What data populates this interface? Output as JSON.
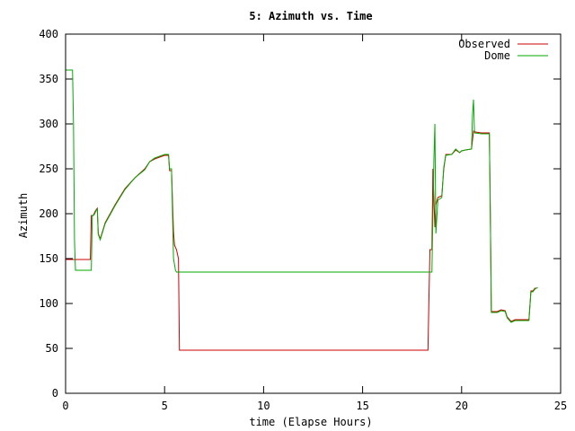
{
  "chart_data": {
    "type": "line",
    "title": "5: Azimuth vs. Time",
    "xlabel": "time (Elapse Hours)",
    "ylabel": "Azimuth",
    "xlim": [
      0,
      25
    ],
    "ylim": [
      0,
      400
    ],
    "x_ticks": [
      0,
      5,
      10,
      15,
      20,
      25
    ],
    "y_ticks": [
      0,
      50,
      100,
      150,
      200,
      250,
      300,
      350,
      400
    ],
    "grid": false,
    "legend_position": "top-right",
    "series": [
      {
        "name": "Observed",
        "color": "#cc0000",
        "points": [
          [
            0,
            150
          ],
          [
            0.05,
            149
          ],
          [
            0.45,
            149
          ],
          [
            1.25,
            149
          ],
          [
            1.3,
            198
          ],
          [
            1.4,
            198
          ],
          [
            1.5,
            203
          ],
          [
            1.6,
            206
          ],
          [
            1.65,
            178
          ],
          [
            1.75,
            172
          ],
          [
            2.0,
            190
          ],
          [
            2.5,
            210
          ],
          [
            3.0,
            228
          ],
          [
            3.5,
            240
          ],
          [
            4.0,
            250
          ],
          [
            4.25,
            258
          ],
          [
            4.5,
            261
          ],
          [
            5.0,
            265
          ],
          [
            5.2,
            265
          ],
          [
            5.25,
            248
          ],
          [
            5.35,
            248
          ],
          [
            5.45,
            180
          ],
          [
            5.5,
            165
          ],
          [
            5.6,
            160
          ],
          [
            5.7,
            150
          ],
          [
            5.75,
            48
          ],
          [
            18.3,
            48
          ],
          [
            18.35,
            105
          ],
          [
            18.4,
            160
          ],
          [
            18.5,
            160
          ],
          [
            18.55,
            250
          ],
          [
            18.6,
            218
          ],
          [
            18.65,
            185
          ],
          [
            18.7,
            210
          ],
          [
            18.8,
            218
          ],
          [
            19.0,
            220
          ],
          [
            19.1,
            250
          ],
          [
            19.2,
            266
          ],
          [
            19.5,
            266
          ],
          [
            19.7,
            271
          ],
          [
            19.9,
            268
          ],
          [
            20.0,
            270
          ],
          [
            20.2,
            271
          ],
          [
            20.5,
            272
          ],
          [
            20.6,
            292
          ],
          [
            20.7,
            291
          ],
          [
            21.0,
            290
          ],
          [
            21.3,
            290
          ],
          [
            21.4,
            290
          ],
          [
            21.45,
            200
          ],
          [
            21.5,
            91
          ],
          [
            21.8,
            91
          ],
          [
            22.0,
            93
          ],
          [
            22.2,
            92
          ],
          [
            22.3,
            85
          ],
          [
            22.5,
            80
          ],
          [
            22.7,
            82
          ],
          [
            23.0,
            82
          ],
          [
            23.4,
            82
          ],
          [
            23.5,
            114
          ],
          [
            23.6,
            114
          ],
          [
            23.7,
            117
          ],
          [
            23.8,
            117
          ]
        ]
      },
      {
        "name": "Dome",
        "color": "#00aa00",
        "points": [
          [
            0,
            360
          ],
          [
            0.35,
            360
          ],
          [
            0.4,
            300
          ],
          [
            0.45,
            170
          ],
          [
            0.5,
            137
          ],
          [
            1.3,
            137
          ],
          [
            1.35,
            198
          ],
          [
            1.45,
            199
          ],
          [
            1.55,
            204
          ],
          [
            1.6,
            205
          ],
          [
            1.65,
            177
          ],
          [
            1.75,
            171
          ],
          [
            2.0,
            189
          ],
          [
            2.5,
            209
          ],
          [
            3.0,
            227
          ],
          [
            3.5,
            240
          ],
          [
            4.0,
            249
          ],
          [
            4.25,
            258
          ],
          [
            4.5,
            262
          ],
          [
            5.0,
            266
          ],
          [
            5.2,
            266
          ],
          [
            5.25,
            250
          ],
          [
            5.35,
            250
          ],
          [
            5.45,
            150
          ],
          [
            5.55,
            137
          ],
          [
            5.6,
            135
          ],
          [
            18.5,
            135
          ],
          [
            18.55,
            200
          ],
          [
            18.6,
            260
          ],
          [
            18.65,
            300
          ],
          [
            18.7,
            178
          ],
          [
            18.8,
            215
          ],
          [
            19.0,
            218
          ],
          [
            19.1,
            252
          ],
          [
            19.2,
            265
          ],
          [
            19.5,
            266
          ],
          [
            19.7,
            272
          ],
          [
            19.9,
            268
          ],
          [
            20.0,
            270
          ],
          [
            20.2,
            271
          ],
          [
            20.5,
            272
          ],
          [
            20.55,
            310
          ],
          [
            20.6,
            327
          ],
          [
            20.65,
            290
          ],
          [
            21.0,
            289
          ],
          [
            21.3,
            289
          ],
          [
            21.4,
            289
          ],
          [
            21.45,
            200
          ],
          [
            21.5,
            90
          ],
          [
            21.8,
            90
          ],
          [
            22.0,
            92
          ],
          [
            22.2,
            91
          ],
          [
            22.3,
            84
          ],
          [
            22.5,
            79
          ],
          [
            22.7,
            81
          ],
          [
            23.0,
            81
          ],
          [
            23.4,
            81
          ],
          [
            23.5,
            113
          ],
          [
            23.6,
            113
          ],
          [
            23.7,
            116
          ],
          [
            23.85,
            118
          ]
        ]
      }
    ]
  }
}
